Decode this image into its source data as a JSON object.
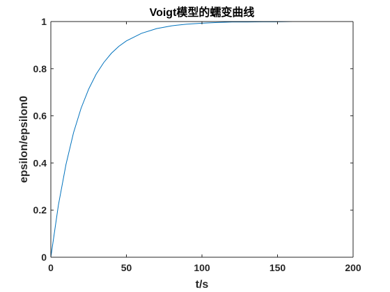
{
  "chart_data": {
    "type": "line",
    "title": "Voigt模型的蠕变曲线",
    "xlabel": "t/s",
    "ylabel": "epsilon/epsilon0",
    "xlim": [
      0,
      200
    ],
    "ylim": [
      0,
      1
    ],
    "xticks": [
      0,
      50,
      100,
      150,
      200
    ],
    "xtick_labels": [
      "0",
      "50",
      "100",
      "150",
      "200"
    ],
    "yticks": [
      0,
      0.2,
      0.4,
      0.6,
      0.8,
      1
    ],
    "ytick_labels": [
      "0",
      "0.2",
      "0.4",
      "0.6",
      "0.8",
      "1"
    ],
    "grid": false,
    "legend": "none",
    "series": [
      {
        "color": "#0072BD",
        "x": [
          0,
          5,
          10,
          15,
          20,
          25,
          30,
          35,
          40,
          45,
          50,
          60,
          70,
          80,
          90,
          100,
          110,
          120,
          130,
          140,
          150,
          160,
          170,
          180,
          190,
          200
        ],
        "y": [
          0,
          0.221,
          0.393,
          0.528,
          0.632,
          0.713,
          0.777,
          0.826,
          0.865,
          0.895,
          0.918,
          0.95,
          0.97,
          0.982,
          0.989,
          0.993,
          0.996,
          0.998,
          0.998,
          0.999,
          0.999,
          1.0,
          1.0,
          1.0,
          1.0,
          1.0
        ]
      }
    ]
  }
}
